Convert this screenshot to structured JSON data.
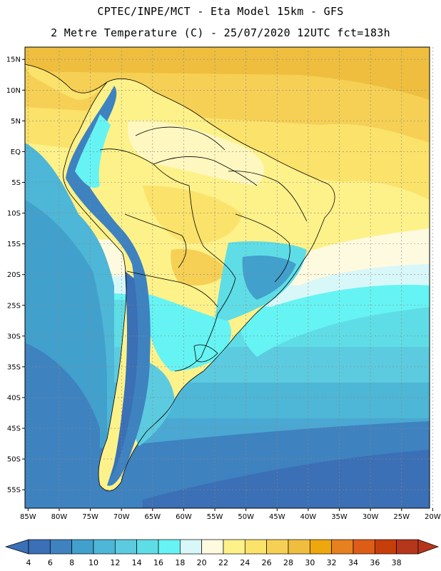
{
  "header": {
    "line1": "CPTEC/INPE/MCT -  Eta Model 15km - GFS",
    "line2": "2 Metre Temperature (C) - 25/07/2020 12UTC fct=183h"
  },
  "map": {
    "lat_labels": [
      "15N",
      "10N",
      "5N",
      "EQ",
      "5S",
      "10S",
      "15S",
      "20S",
      "25S",
      "30S",
      "35S",
      "40S",
      "45S",
      "50S",
      "55S"
    ],
    "lon_labels": [
      "85W",
      "80W",
      "75W",
      "70W",
      "65W",
      "60W",
      "55W",
      "50W",
      "45W",
      "40W",
      "35W",
      "30W",
      "25W",
      "20W"
    ],
    "lat_range": [
      -58,
      17
    ],
    "lon_range": [
      -85.5,
      -20.5
    ]
  },
  "colorbar": {
    "labels": [
      "4",
      "6",
      "8",
      "10",
      "12",
      "14",
      "16",
      "18",
      "20",
      "22",
      "24",
      "26",
      "28",
      "30",
      "32",
      "34",
      "36",
      "38"
    ],
    "colors": [
      "#3b6fb6",
      "#3e82c0",
      "#42a0cc",
      "#4eb6d6",
      "#5ccbdf",
      "#5fdde6",
      "#66f3f3",
      "#d8f7f9",
      "#fefae0",
      "#fdf18a",
      "#fbe26a",
      "#f6d055",
      "#efbe3e",
      "#eea70d",
      "#e7801f",
      "#dd5d17",
      "#c63e0a",
      "#b5361a"
    ]
  }
}
